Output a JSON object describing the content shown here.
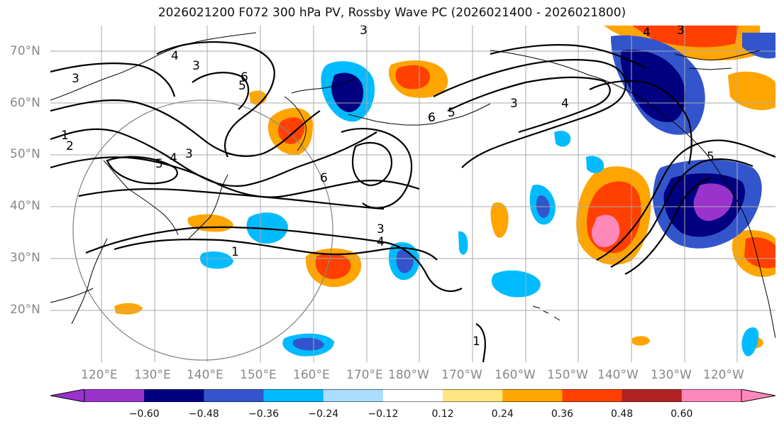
{
  "title": "2026021200 F072 300 hPa PV, Rossby Wave PC (2026021400 - 2026021800)",
  "lat_labels": [
    "70°N",
    "60°N",
    "50°N",
    "40°N",
    "30°N",
    "20°N"
  ],
  "lon_labels": [
    "120°E",
    "130°E",
    "140°E",
    "150°E",
    "160°E",
    "170°E",
    "180°W",
    "170°W",
    "160°W",
    "150°W",
    "140°W",
    "130°W",
    "120°W"
  ],
  "contour_labels": [
    "3",
    "4",
    "1",
    "2",
    "3",
    "4",
    "5",
    "6",
    "6",
    "6",
    "5",
    "3",
    "4",
    "5",
    "4",
    "3",
    "1",
    "3",
    "4",
    "6",
    "1",
    "3",
    "5",
    "3"
  ],
  "colorbar": {
    "ticks": [
      "−0.60",
      "−0.48",
      "−0.36",
      "−0.24",
      "−0.12",
      "0.12",
      "0.24",
      "0.36",
      "0.48",
      "0.60"
    ],
    "colors": [
      "#9933cc",
      "#000080",
      "#3355cc",
      "#00bbff",
      "#aaddff",
      "#ffffff",
      "#ffe680",
      "#ffa500",
      "#ff4000",
      "#b22222",
      "#ff88bb"
    ]
  },
  "shading_colors": {
    "neg_low": "#aaddff",
    "neg_mid": "#00bbff",
    "neg_high": "#3355cc",
    "neg_max": "#000080",
    "neg_ext": "#9933cc",
    "pos_low": "#ffe680",
    "pos_mid": "#ffa500",
    "pos_high": "#ff4000",
    "pos_max": "#b22222",
    "pos_ext": "#ff88bb"
  }
}
